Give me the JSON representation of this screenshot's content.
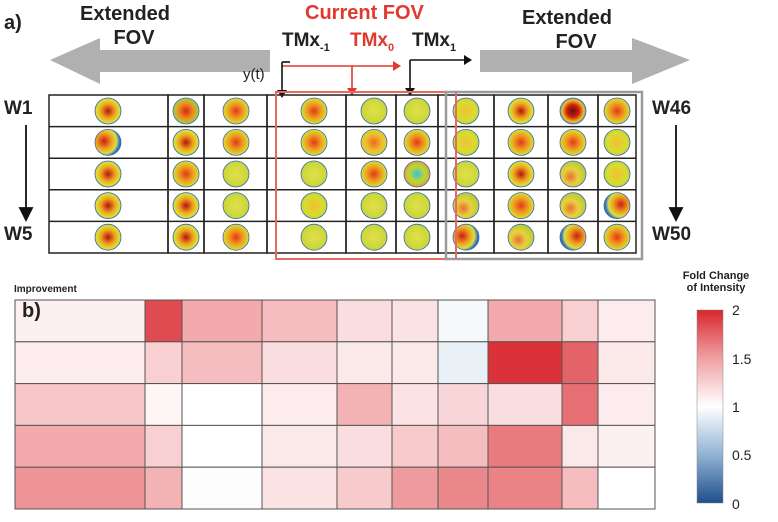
{
  "panel_a": {
    "label": "a)",
    "left_extended": [
      "Extended",
      "FOV"
    ],
    "right_extended": [
      "Extended",
      "FOV"
    ],
    "current_fov": "Current FOV",
    "tm_minus": {
      "base": "TMx",
      "sub": "-1"
    },
    "tm_zero": {
      "base": "TMx",
      "sub": "0"
    },
    "tm_plus": {
      "base": "TMx",
      "sub": "1"
    },
    "yt_label": "y(t)",
    "row_labels": {
      "top_left": "W1",
      "bottom_left": "W5",
      "top_right": "W46",
      "bottom_right": "W50"
    },
    "colors": {
      "highlight": "#e86a5e",
      "gray_box": "#9a9a9a",
      "arrow_gray": "#b0b0b0"
    },
    "maps": [
      [
        "rb-center",
        "rb-low",
        "ry-center",
        "ry-center",
        "y-flat",
        "y-flat",
        "y-center",
        "rb-center",
        "rb-high",
        "ry-center"
      ],
      [
        "rb-left",
        "rb-center",
        "ry-center",
        "ry-center",
        "ry-low",
        "ry-center",
        "y-center",
        "ry-center",
        "ry-center",
        "y-center"
      ],
      [
        "rb-center",
        "ry-center",
        "y-flat",
        "y-flat",
        "ry-center",
        "ring",
        "y-flat",
        "rb-center",
        "y-stripe",
        "y-center"
      ],
      [
        "rb-center",
        "rb-center",
        "y-flat",
        "y-center",
        "y-flat",
        "y-flat",
        "y-stripe",
        "ry-center",
        "y-stripe",
        "rb-right"
      ],
      [
        "rb-center",
        "rb-center",
        "ry-center",
        "y-flat",
        "y-flat",
        "y-flat",
        "rb-left",
        "y-stripe",
        "rb-right",
        "ry-center"
      ]
    ]
  },
  "panel_b": {
    "label": "b)",
    "note": "Improvement",
    "colorbar": {
      "title": [
        "Fold Change",
        "of Intensity"
      ],
      "ticks": [
        "2",
        "1.5",
        "1",
        "0.5",
        "0"
      ],
      "min": 0,
      "max": 2
    },
    "rows": [
      [
        1.08,
        1.85,
        1.45,
        1.35,
        1.18,
        1.15,
        0.96,
        1.45,
        1.25,
        1.1
      ],
      [
        1.1,
        1.25,
        1.35,
        1.18,
        1.12,
        1.12,
        0.9,
        1.95,
        1.75,
        1.12
      ],
      [
        1.3,
        1.05,
        1.0,
        1.1,
        1.4,
        1.15,
        1.22,
        1.18,
        1.7,
        1.1
      ],
      [
        1.45,
        1.25,
        1.0,
        1.12,
        1.18,
        1.28,
        1.35,
        1.65,
        1.12,
        1.08
      ],
      [
        1.55,
        1.4,
        0.99,
        1.15,
        1.28,
        1.52,
        1.6,
        1.62,
        1.35,
        1.0
      ]
    ]
  }
}
